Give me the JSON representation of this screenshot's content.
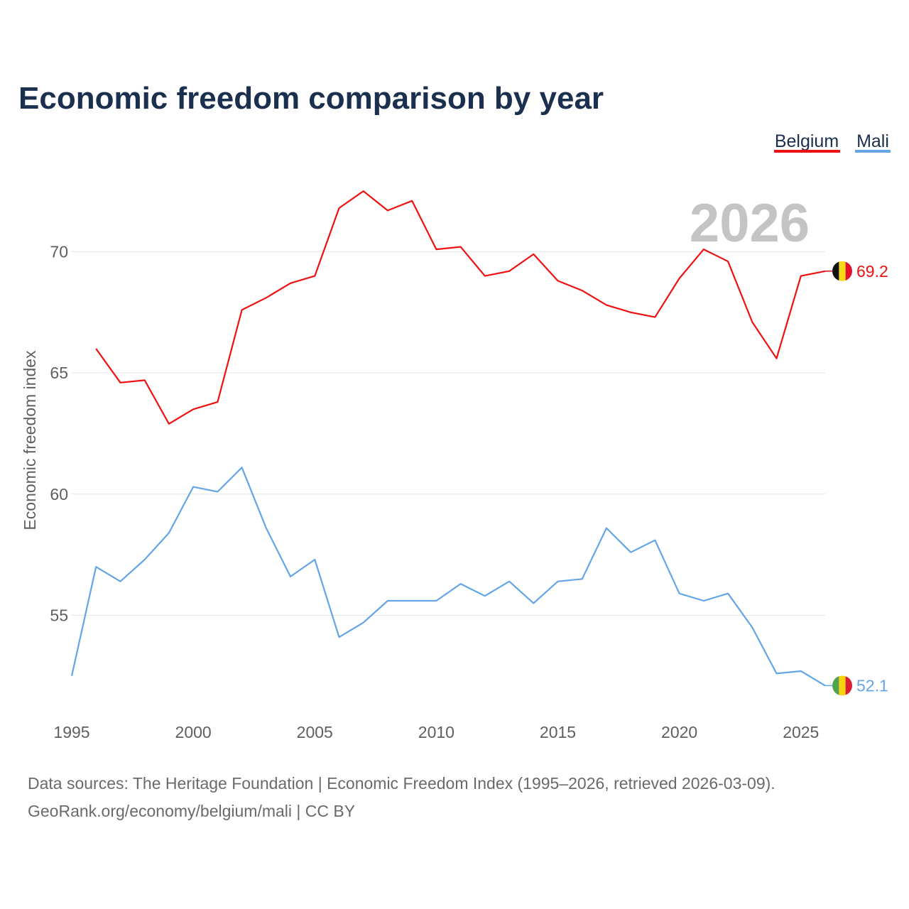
{
  "title": "Economic freedom comparison by year",
  "watermark_year": "2026",
  "footer": {
    "line1": "Data sources: The Heritage Foundation | Economic Freedom Index (1995–2026, retrieved 2026-03-09).",
    "line2": "GeoRank.org/economy/belgium/mali | CC BY"
  },
  "legend": {
    "items": [
      {
        "label": "Belgium",
        "color": "#ee1111"
      },
      {
        "label": "Mali",
        "color": "#63a5e6"
      }
    ]
  },
  "end_labels": {
    "belgium": "69.2",
    "mali": "52.1"
  },
  "flags": {
    "belgium": [
      "#111111",
      "#f7d917",
      "#e4112d"
    ],
    "mali": [
      "#4ea34c",
      "#f6d211",
      "#d91e36"
    ]
  },
  "chart_data": {
    "type": "line",
    "title": "Economic freedom comparison by year",
    "xlabel": "",
    "ylabel": "Economic freedom index",
    "xlim": [
      1995,
      2026
    ],
    "ylim": [
      51,
      73.5
    ],
    "x_ticks": [
      1995,
      2000,
      2005,
      2010,
      2015,
      2020,
      2025
    ],
    "y_ticks": [
      55,
      60,
      65,
      70
    ],
    "x_tick_labels": [
      "1995",
      "2000",
      "2005",
      "2010",
      "2015",
      "2020",
      "2025"
    ],
    "y_tick_labels": [
      "55",
      "60",
      "65",
      "70"
    ],
    "grid": true,
    "legend_position": "top-right",
    "series": [
      {
        "name": "Belgium",
        "color": "#ee1111",
        "x": [
          1996,
          1997,
          1998,
          1999,
          2000,
          2001,
          2002,
          2003,
          2004,
          2005,
          2006,
          2007,
          2008,
          2009,
          2010,
          2011,
          2012,
          2013,
          2014,
          2015,
          2016,
          2017,
          2018,
          2019,
          2020,
          2021,
          2022,
          2023,
          2024,
          2025,
          2026
        ],
        "values": [
          66.0,
          64.6,
          64.7,
          62.9,
          63.5,
          63.8,
          67.6,
          68.1,
          68.7,
          69.0,
          71.8,
          72.5,
          71.7,
          72.1,
          70.1,
          70.2,
          69.0,
          69.2,
          69.9,
          68.8,
          68.4,
          67.8,
          67.5,
          67.3,
          68.9,
          70.1,
          69.6,
          67.1,
          65.6,
          69.0,
          69.2
        ]
      },
      {
        "name": "Mali",
        "color": "#63a5e6",
        "x": [
          1995,
          1996,
          1997,
          1998,
          1999,
          2000,
          2001,
          2002,
          2003,
          2004,
          2005,
          2006,
          2007,
          2008,
          2009,
          2010,
          2011,
          2012,
          2013,
          2014,
          2015,
          2016,
          2017,
          2018,
          2019,
          2020,
          2021,
          2022,
          2023,
          2024,
          2025,
          2026
        ],
        "values": [
          52.5,
          57.0,
          56.4,
          57.3,
          58.4,
          60.3,
          60.1,
          61.1,
          58.6,
          56.6,
          57.3,
          54.1,
          54.7,
          55.6,
          55.6,
          55.6,
          56.3,
          55.8,
          56.4,
          55.5,
          56.4,
          56.5,
          58.6,
          57.6,
          58.1,
          55.9,
          55.6,
          55.9,
          54.5,
          52.6,
          52.7,
          52.1
        ]
      }
    ]
  }
}
